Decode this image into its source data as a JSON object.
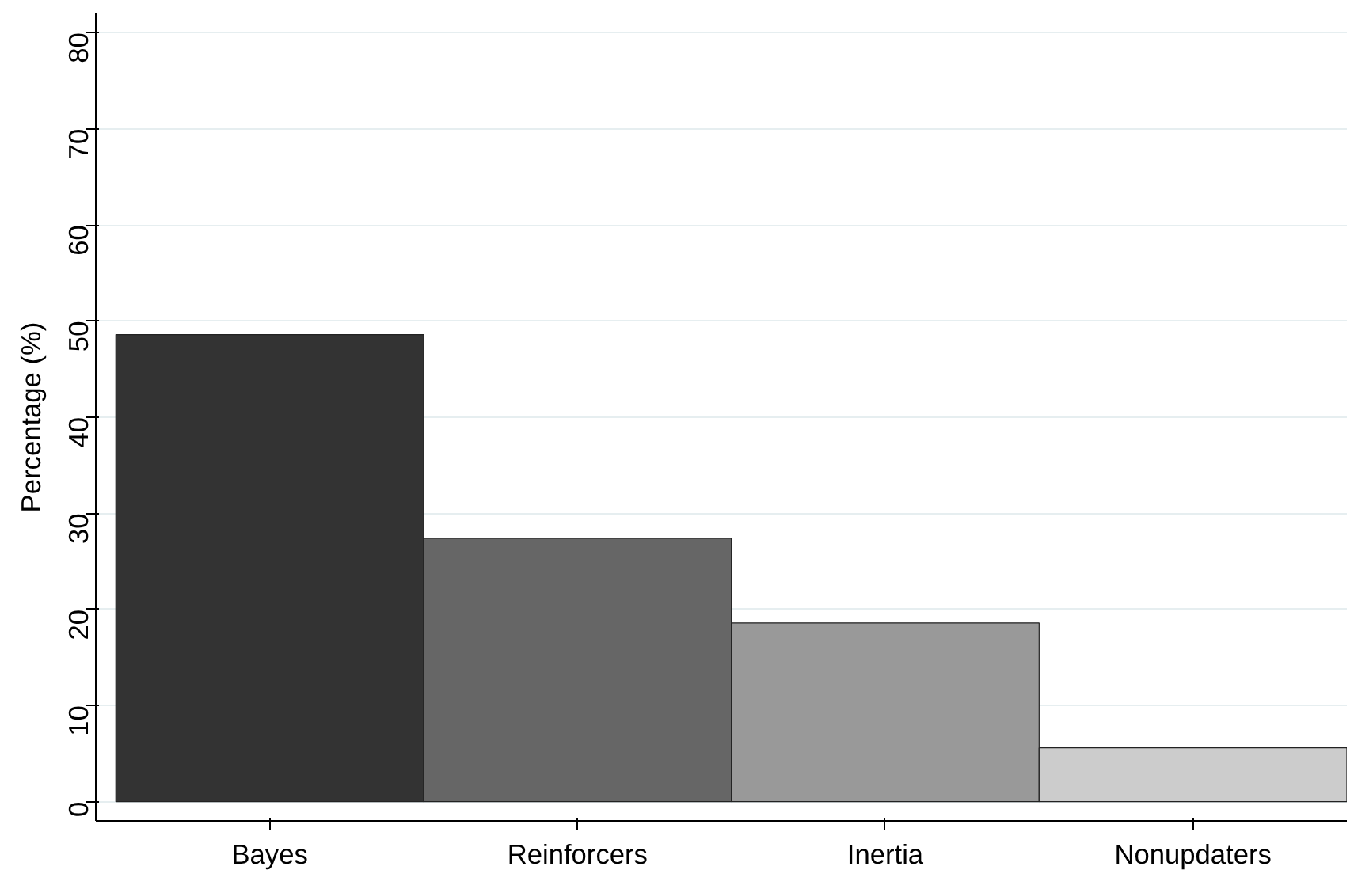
{
  "chart_data": {
    "type": "bar",
    "ylabel": "Percentage (%)",
    "categories": [
      "Bayes",
      "Reinforcers",
      "Inertia",
      "Nonupdaters"
    ],
    "values": [
      48.6,
      27.4,
      18.6,
      5.6
    ],
    "colors": [
      "#333333",
      "#666666",
      "#999999",
      "#cccccc"
    ],
    "ylim": [
      -2,
      82
    ],
    "yticks": [
      0,
      10,
      20,
      30,
      40,
      50,
      60,
      70,
      80
    ],
    "grid": "y"
  }
}
